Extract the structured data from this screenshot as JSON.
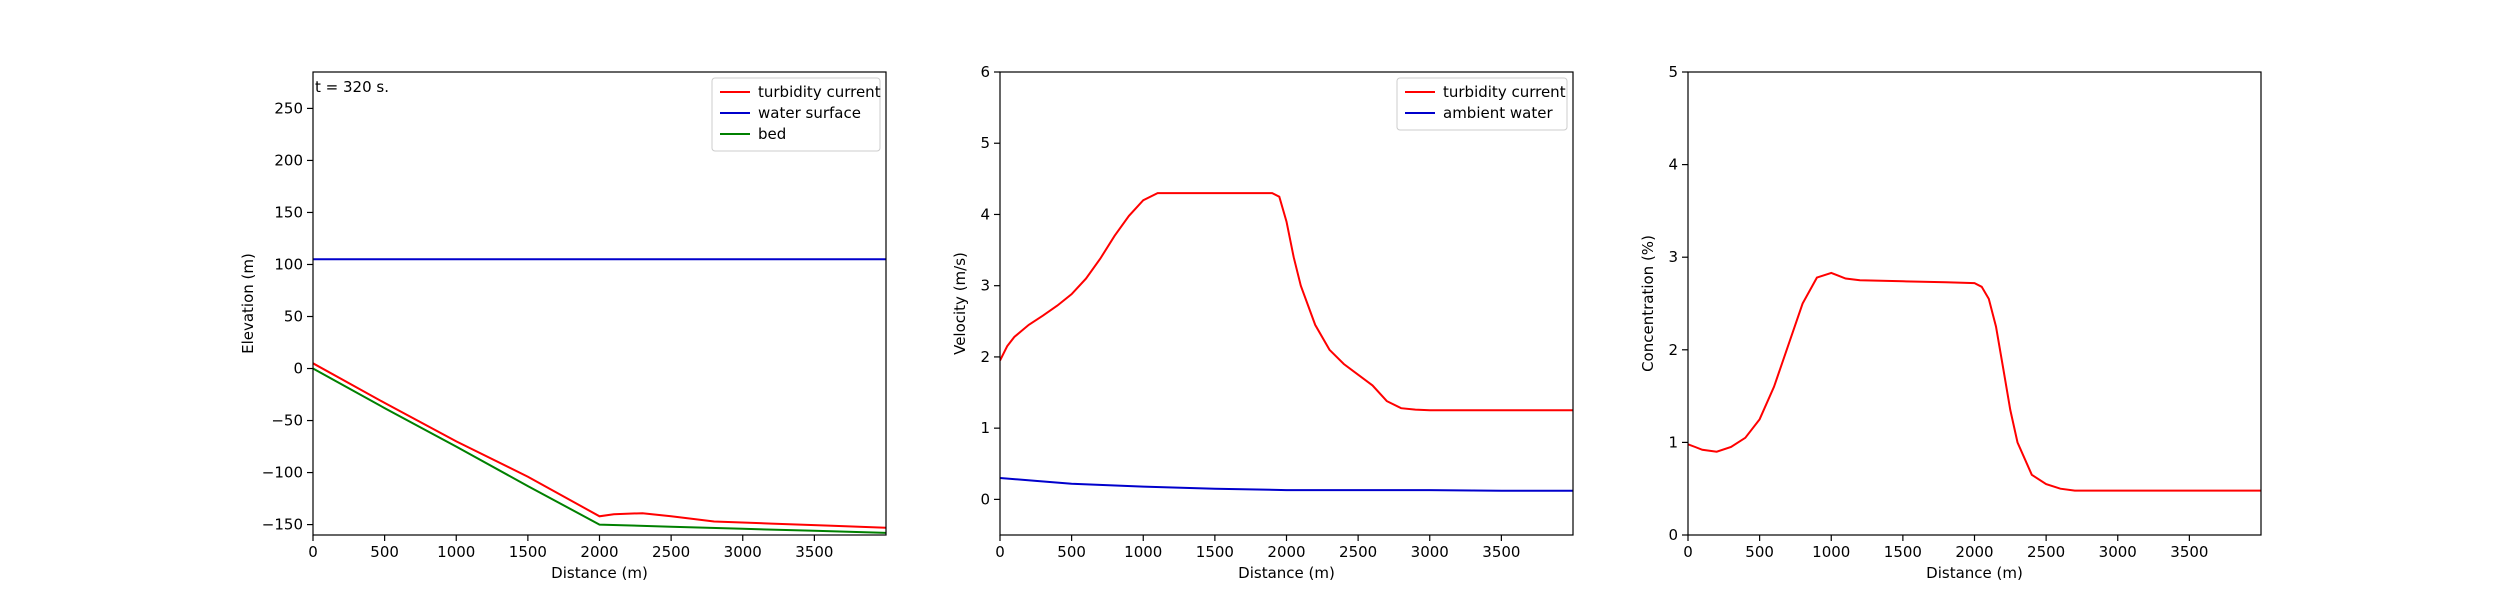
{
  "chart_data": [
    {
      "type": "line",
      "annotation": "t = 320 s.",
      "xlabel": "Distance (m)",
      "ylabel": "Elevation (m)",
      "xlim": [
        0,
        4000
      ],
      "ylim": [
        -160,
        285
      ],
      "xticks": [
        0,
        500,
        1000,
        1500,
        2000,
        2500,
        3000,
        3500
      ],
      "yticks": [
        -150,
        -100,
        -50,
        0,
        50,
        100,
        150,
        200,
        250
      ],
      "ytick_labels": [
        "−150",
        "−100",
        "−50",
        "0",
        "50",
        "100",
        "150",
        "200",
        "250"
      ],
      "legend": "top-right",
      "series": [
        {
          "name": "turbidity current",
          "color": "#ff0000",
          "x": [
            0,
            500,
            1000,
            1500,
            2000,
            2100,
            2300,
            2500,
            2800,
            3200,
            3600,
            4000
          ],
          "y": [
            5,
            -33,
            -70,
            -104,
            -142,
            -140,
            -139,
            -142,
            -147,
            -149,
            -151,
            -153
          ]
        },
        {
          "name": "water surface",
          "color": "#0000cc",
          "x": [
            0,
            4000
          ],
          "y": [
            105,
            105
          ]
        },
        {
          "name": "bed",
          "color": "#008000",
          "x": [
            0,
            500,
            1000,
            1500,
            2000,
            2500,
            3000,
            3500,
            4000
          ],
          "y": [
            0,
            -38,
            -75,
            -113,
            -150,
            -152,
            -154,
            -156,
            -158
          ]
        }
      ]
    },
    {
      "type": "line",
      "xlabel": "Distance (m)",
      "ylabel": "Velocity (m/s)",
      "xlim": [
        0,
        4000
      ],
      "ylim": [
        -0.5,
        6
      ],
      "xticks": [
        0,
        500,
        1000,
        1500,
        2000,
        2500,
        3000,
        3500
      ],
      "yticks": [
        0,
        1,
        2,
        3,
        4,
        5,
        6
      ],
      "ytick_labels": [
        "0",
        "1",
        "2",
        "3",
        "4",
        "5",
        "6"
      ],
      "legend": "top-right",
      "series": [
        {
          "name": "turbidity current",
          "color": "#ff0000",
          "x": [
            0,
            50,
            100,
            200,
            300,
            400,
            500,
            600,
            700,
            800,
            900,
            1000,
            1100,
            1200,
            1300,
            1500,
            1700,
            1900,
            1950,
            2000,
            2050,
            2100,
            2200,
            2300,
            2400,
            2500,
            2600,
            2700,
            2800,
            2900,
            3000,
            3500,
            4000
          ],
          "y": [
            1.95,
            2.15,
            2.28,
            2.45,
            2.58,
            2.72,
            2.88,
            3.1,
            3.38,
            3.7,
            3.98,
            4.2,
            4.3,
            4.3,
            4.3,
            4.3,
            4.3,
            4.3,
            4.25,
            3.9,
            3.4,
            3.0,
            2.45,
            2.1,
            1.9,
            1.75,
            1.6,
            1.38,
            1.28,
            1.26,
            1.25,
            1.25,
            1.25
          ]
        },
        {
          "name": "ambient water",
          "color": "#0000cc",
          "x": [
            0,
            250,
            500,
            1000,
            1500,
            2000,
            2500,
            3000,
            3500,
            4000
          ],
          "y": [
            0.3,
            0.26,
            0.22,
            0.18,
            0.15,
            0.13,
            0.13,
            0.13,
            0.12,
            0.12
          ]
        }
      ]
    },
    {
      "type": "line",
      "xlabel": "Distance (m)",
      "ylabel": "Concentration (%)",
      "xlim": [
        0,
        4000
      ],
      "ylim": [
        0,
        5
      ],
      "xticks": [
        0,
        500,
        1000,
        1500,
        2000,
        2500,
        3000,
        3500
      ],
      "yticks": [
        0,
        1,
        2,
        3,
        4,
        5
      ],
      "ytick_labels": [
        "0",
        "1",
        "2",
        "3",
        "4",
        "5"
      ],
      "series": [
        {
          "color": "#ff0000",
          "x": [
            0,
            50,
            100,
            200,
            300,
            400,
            500,
            600,
            700,
            800,
            900,
            1000,
            1050,
            1100,
            1200,
            1500,
            1800,
            2000,
            2050,
            2100,
            2150,
            2200,
            2250,
            2300,
            2400,
            2500,
            2600,
            2700,
            2800,
            3000,
            3500,
            4000
          ],
          "y": [
            0.98,
            0.95,
            0.92,
            0.9,
            0.95,
            1.05,
            1.25,
            1.6,
            2.05,
            2.5,
            2.78,
            2.83,
            2.8,
            2.77,
            2.75,
            2.74,
            2.73,
            2.72,
            2.68,
            2.55,
            2.25,
            1.8,
            1.35,
            1.0,
            0.65,
            0.55,
            0.5,
            0.48,
            0.48,
            0.48,
            0.48,
            0.48
          ]
        }
      ]
    }
  ]
}
